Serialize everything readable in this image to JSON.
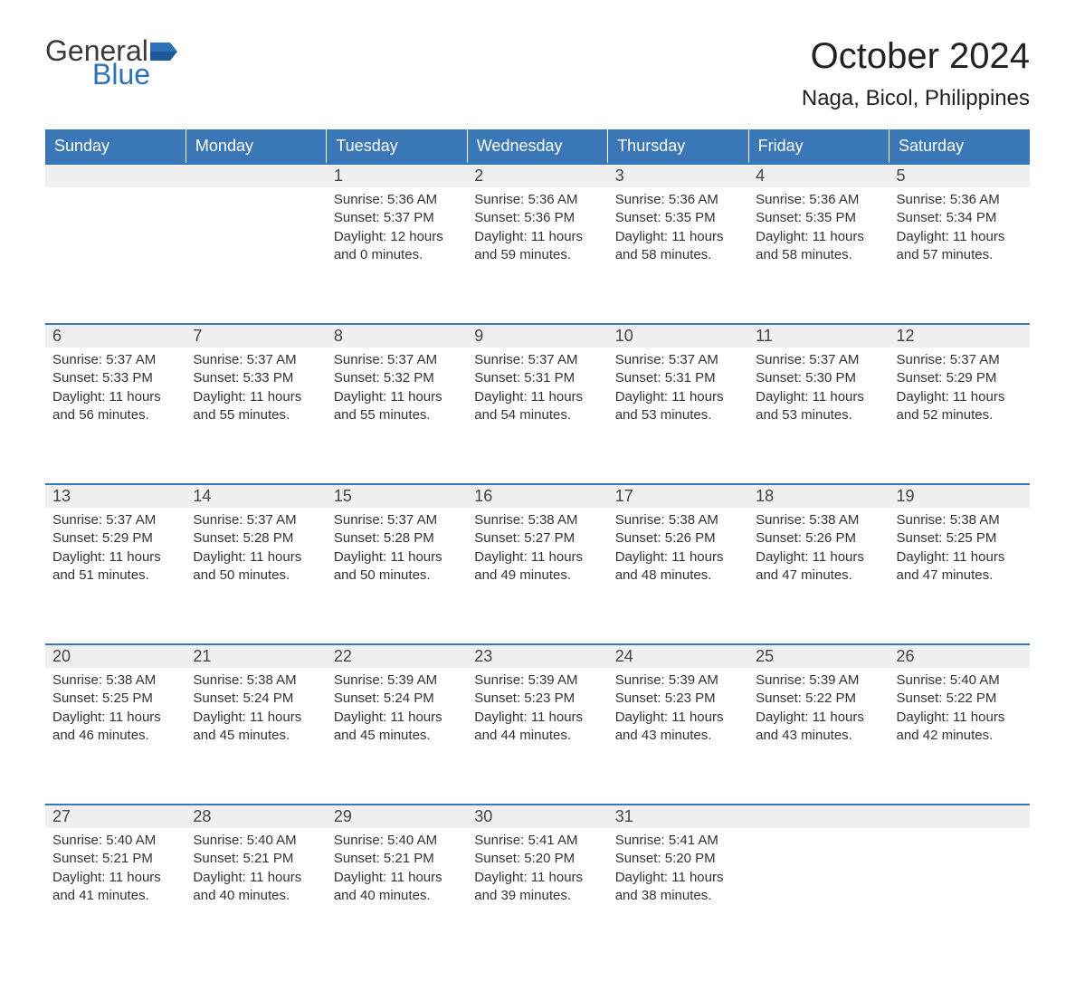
{
  "logo": {
    "word1": "General",
    "word2": "Blue",
    "flag_color": "#2d72b8"
  },
  "title": "October 2024",
  "location": "Naga, Bicol, Philippines",
  "colors": {
    "header_bg": "#3a77b7",
    "header_text": "#ffffff",
    "daynum_bg": "#f0f0f0",
    "row_border": "#3a77b7",
    "body_text": "#333333",
    "background": "#ffffff"
  },
  "fontsize": {
    "title": 40,
    "subtitle": 24,
    "header": 18,
    "daynum": 18,
    "body": 15
  },
  "columns": [
    "Sunday",
    "Monday",
    "Tuesday",
    "Wednesday",
    "Thursday",
    "Friday",
    "Saturday"
  ],
  "weeks": [
    [
      null,
      null,
      {
        "n": "1",
        "rise": "5:36 AM",
        "set": "5:37 PM",
        "dl": "12 hours and 0 minutes."
      },
      {
        "n": "2",
        "rise": "5:36 AM",
        "set": "5:36 PM",
        "dl": "11 hours and 59 minutes."
      },
      {
        "n": "3",
        "rise": "5:36 AM",
        "set": "5:35 PM",
        "dl": "11 hours and 58 minutes."
      },
      {
        "n": "4",
        "rise": "5:36 AM",
        "set": "5:35 PM",
        "dl": "11 hours and 58 minutes."
      },
      {
        "n": "5",
        "rise": "5:36 AM",
        "set": "5:34 PM",
        "dl": "11 hours and 57 minutes."
      }
    ],
    [
      {
        "n": "6",
        "rise": "5:37 AM",
        "set": "5:33 PM",
        "dl": "11 hours and 56 minutes."
      },
      {
        "n": "7",
        "rise": "5:37 AM",
        "set": "5:33 PM",
        "dl": "11 hours and 55 minutes."
      },
      {
        "n": "8",
        "rise": "5:37 AM",
        "set": "5:32 PM",
        "dl": "11 hours and 55 minutes."
      },
      {
        "n": "9",
        "rise": "5:37 AM",
        "set": "5:31 PM",
        "dl": "11 hours and 54 minutes."
      },
      {
        "n": "10",
        "rise": "5:37 AM",
        "set": "5:31 PM",
        "dl": "11 hours and 53 minutes."
      },
      {
        "n": "11",
        "rise": "5:37 AM",
        "set": "5:30 PM",
        "dl": "11 hours and 53 minutes."
      },
      {
        "n": "12",
        "rise": "5:37 AM",
        "set": "5:29 PM",
        "dl": "11 hours and 52 minutes."
      }
    ],
    [
      {
        "n": "13",
        "rise": "5:37 AM",
        "set": "5:29 PM",
        "dl": "11 hours and 51 minutes."
      },
      {
        "n": "14",
        "rise": "5:37 AM",
        "set": "5:28 PM",
        "dl": "11 hours and 50 minutes."
      },
      {
        "n": "15",
        "rise": "5:37 AM",
        "set": "5:28 PM",
        "dl": "11 hours and 50 minutes."
      },
      {
        "n": "16",
        "rise": "5:38 AM",
        "set": "5:27 PM",
        "dl": "11 hours and 49 minutes."
      },
      {
        "n": "17",
        "rise": "5:38 AM",
        "set": "5:26 PM",
        "dl": "11 hours and 48 minutes."
      },
      {
        "n": "18",
        "rise": "5:38 AM",
        "set": "5:26 PM",
        "dl": "11 hours and 47 minutes."
      },
      {
        "n": "19",
        "rise": "5:38 AM",
        "set": "5:25 PM",
        "dl": "11 hours and 47 minutes."
      }
    ],
    [
      {
        "n": "20",
        "rise": "5:38 AM",
        "set": "5:25 PM",
        "dl": "11 hours and 46 minutes."
      },
      {
        "n": "21",
        "rise": "5:38 AM",
        "set": "5:24 PM",
        "dl": "11 hours and 45 minutes."
      },
      {
        "n": "22",
        "rise": "5:39 AM",
        "set": "5:24 PM",
        "dl": "11 hours and 45 minutes."
      },
      {
        "n": "23",
        "rise": "5:39 AM",
        "set": "5:23 PM",
        "dl": "11 hours and 44 minutes."
      },
      {
        "n": "24",
        "rise": "5:39 AM",
        "set": "5:23 PM",
        "dl": "11 hours and 43 minutes."
      },
      {
        "n": "25",
        "rise": "5:39 AM",
        "set": "5:22 PM",
        "dl": "11 hours and 43 minutes."
      },
      {
        "n": "26",
        "rise": "5:40 AM",
        "set": "5:22 PM",
        "dl": "11 hours and 42 minutes."
      }
    ],
    [
      {
        "n": "27",
        "rise": "5:40 AM",
        "set": "5:21 PM",
        "dl": "11 hours and 41 minutes."
      },
      {
        "n": "28",
        "rise": "5:40 AM",
        "set": "5:21 PM",
        "dl": "11 hours and 40 minutes."
      },
      {
        "n": "29",
        "rise": "5:40 AM",
        "set": "5:21 PM",
        "dl": "11 hours and 40 minutes."
      },
      {
        "n": "30",
        "rise": "5:41 AM",
        "set": "5:20 PM",
        "dl": "11 hours and 39 minutes."
      },
      {
        "n": "31",
        "rise": "5:41 AM",
        "set": "5:20 PM",
        "dl": "11 hours and 38 minutes."
      },
      null,
      null
    ]
  ],
  "labels": {
    "sunrise": "Sunrise: ",
    "sunset": "Sunset: ",
    "daylight": "Daylight: "
  }
}
